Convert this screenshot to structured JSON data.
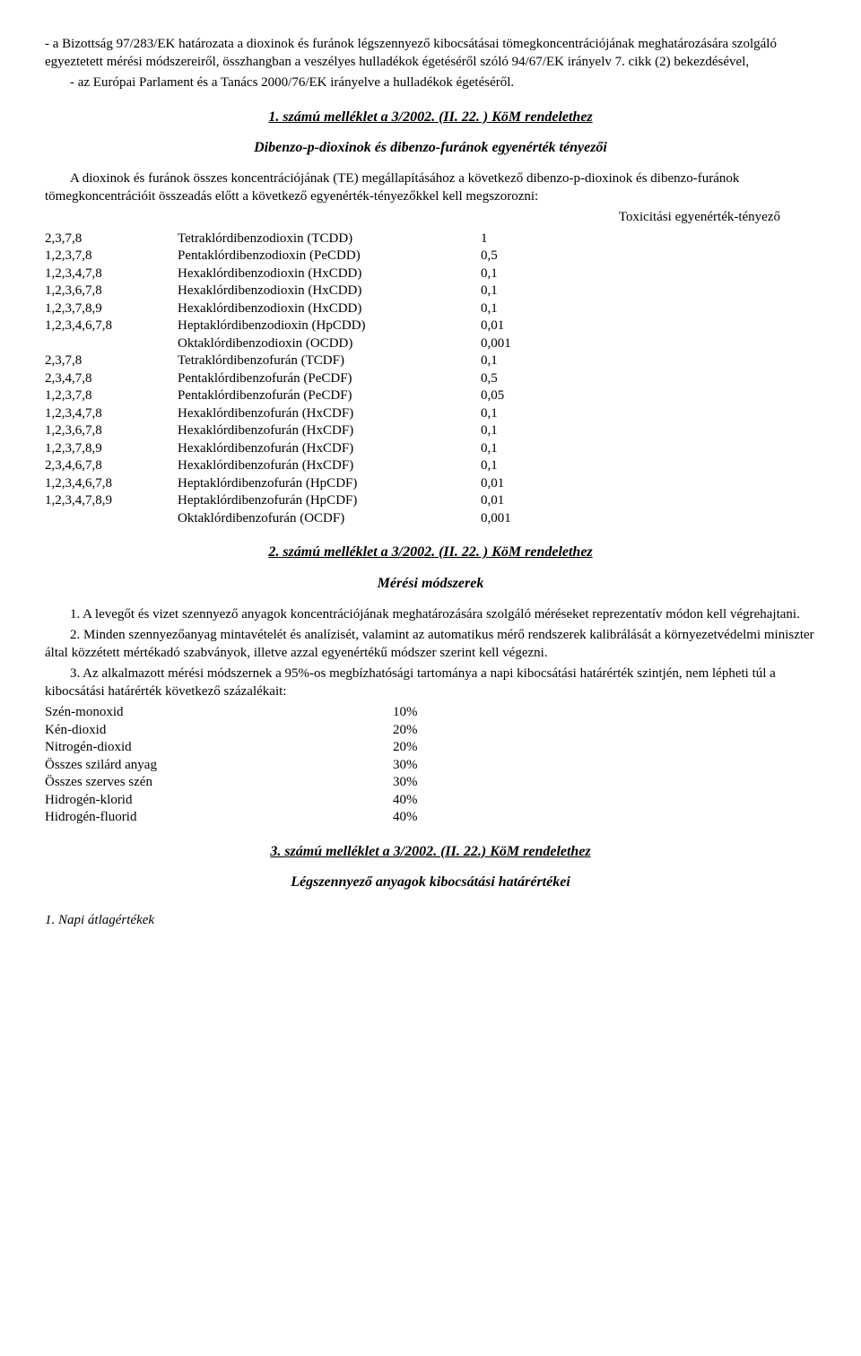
{
  "intro": {
    "p1": "- a Bizottság 97/283/EK határozata a dioxinok és furánok légszennyező kibocsátásai tömegkoncentrációjának meghatározására szolgáló egyeztetett mérési módszereiről, összhangban a veszélyes hulladékok égetéséről szóló 94/67/EK irányelv 7. cikk (2) bekezdésével,",
    "p2": "- az Európai Parlament és a Tanács 2000/76/EK irányelve a hulladékok égetéséről."
  },
  "annex1": {
    "heading": "1. számú melléklet a 3/2002. (II. 22. ) KöM rendelethez",
    "subheading": "Dibenzo-p-dioxinok és dibenzo-furánok egyenérték tényezői",
    "lead": "A dioxinok és furánok összes koncentrációjának (TE) megállapításához a következő dibenzo-p-dioxinok és dibenzo-furánok tömegkoncentrációit összeadás előtt a következő egyenérték-tényezőkkel kell megszorozni:",
    "toxhead": "Toxicitási egyenérték-tényező",
    "rows": [
      [
        "2,3,7,8",
        "Tetraklórdibenzodioxin (TCDD)",
        "1"
      ],
      [
        "1,2,3,7,8",
        "Pentaklórdibenzodioxin (PeCDD)",
        "0,5"
      ],
      [
        "1,2,3,4,7,8",
        "Hexaklórdibenzodioxin (HxCDD)",
        "0,1"
      ],
      [
        "1,2,3,6,7,8",
        "Hexaklórdibenzodioxin (HxCDD)",
        "0,1"
      ],
      [
        "1,2,3,7,8,9",
        "Hexaklórdibenzodioxin (HxCDD)",
        "0,1"
      ],
      [
        "1,2,3,4,6,7,8",
        "Heptaklórdibenzodioxin (HpCDD)",
        "0,01"
      ],
      [
        "",
        "Oktaklórdibenzodioxin (OCDD)",
        "0,001"
      ],
      [
        "2,3,7,8",
        "Tetraklórdibenzofurán (TCDF)",
        "0,1"
      ],
      [
        "2,3,4,7,8",
        "Pentaklórdibenzofurán (PeCDF)",
        "0,5"
      ],
      [
        "1,2,3,7,8",
        "Pentaklórdibenzofurán (PeCDF)",
        "0,05"
      ],
      [
        "1,2,3,4,7,8",
        "Hexaklórdibenzofurán (HxCDF)",
        "0,1"
      ],
      [
        "1,2,3,6,7,8",
        "Hexaklórdibenzofurán (HxCDF)",
        "0,1"
      ],
      [
        "1,2,3,7,8,9",
        "Hexaklórdibenzofurán (HxCDF)",
        "0,1"
      ],
      [
        "2,3,4,6,7,8",
        "Hexaklórdibenzofurán (HxCDF)",
        "0,1"
      ],
      [
        "1,2,3,4,6,7,8",
        "Heptaklórdibenzofurán (HpCDF)",
        "0,01"
      ],
      [
        "1,2,3,4,7,8,9",
        "Heptaklórdibenzofurán (HpCDF)",
        "0,01"
      ],
      [
        "",
        "Oktaklórdibenzofurán (OCDF)",
        "0,001"
      ]
    ]
  },
  "annex2": {
    "heading": "2. számú melléklet a 3/2002. (II. 22. ) KöM rendelethez",
    "subheading": "Mérési módszerek",
    "p1": "1. A levegőt és vizet szennyező anyagok koncentrációjának meghatározására szolgáló méréseket reprezentatív módon kell végrehajtani.",
    "p2": "2. Minden szennyezőanyag mintavételét és analízisét, valamint az automatikus mérő rendszerek kalibrálását a környezetvédelmi miniszter által közzétett mértékadó szabványok, illetve azzal egyenértékű módszer szerint kell végezni.",
    "p3": "3. Az alkalmazott mérési módszernek a 95%-os megbízhatósági tartománya a napi kibocsátási határérték szintjén, nem lépheti túl a kibocsátási határérték következő százalékait:",
    "pct": [
      [
        "Szén-monoxid",
        "10%"
      ],
      [
        "Kén-dioxid",
        "20%"
      ],
      [
        "Nitrogén-dioxid",
        "20%"
      ],
      [
        "Összes szilárd anyag",
        "30%"
      ],
      [
        "Összes szerves szén",
        "30%"
      ],
      [
        "Hidrogén-klorid",
        "40%"
      ],
      [
        "Hidrogén-fluorid",
        "40%"
      ]
    ]
  },
  "annex3": {
    "heading": "3. számú melléklet a 3/2002. (II. 22.) KöM rendelethez",
    "subheading": "Légszennyező anyagok kibocsátási határértékei",
    "footer": "1. Napi átlagértékek"
  }
}
